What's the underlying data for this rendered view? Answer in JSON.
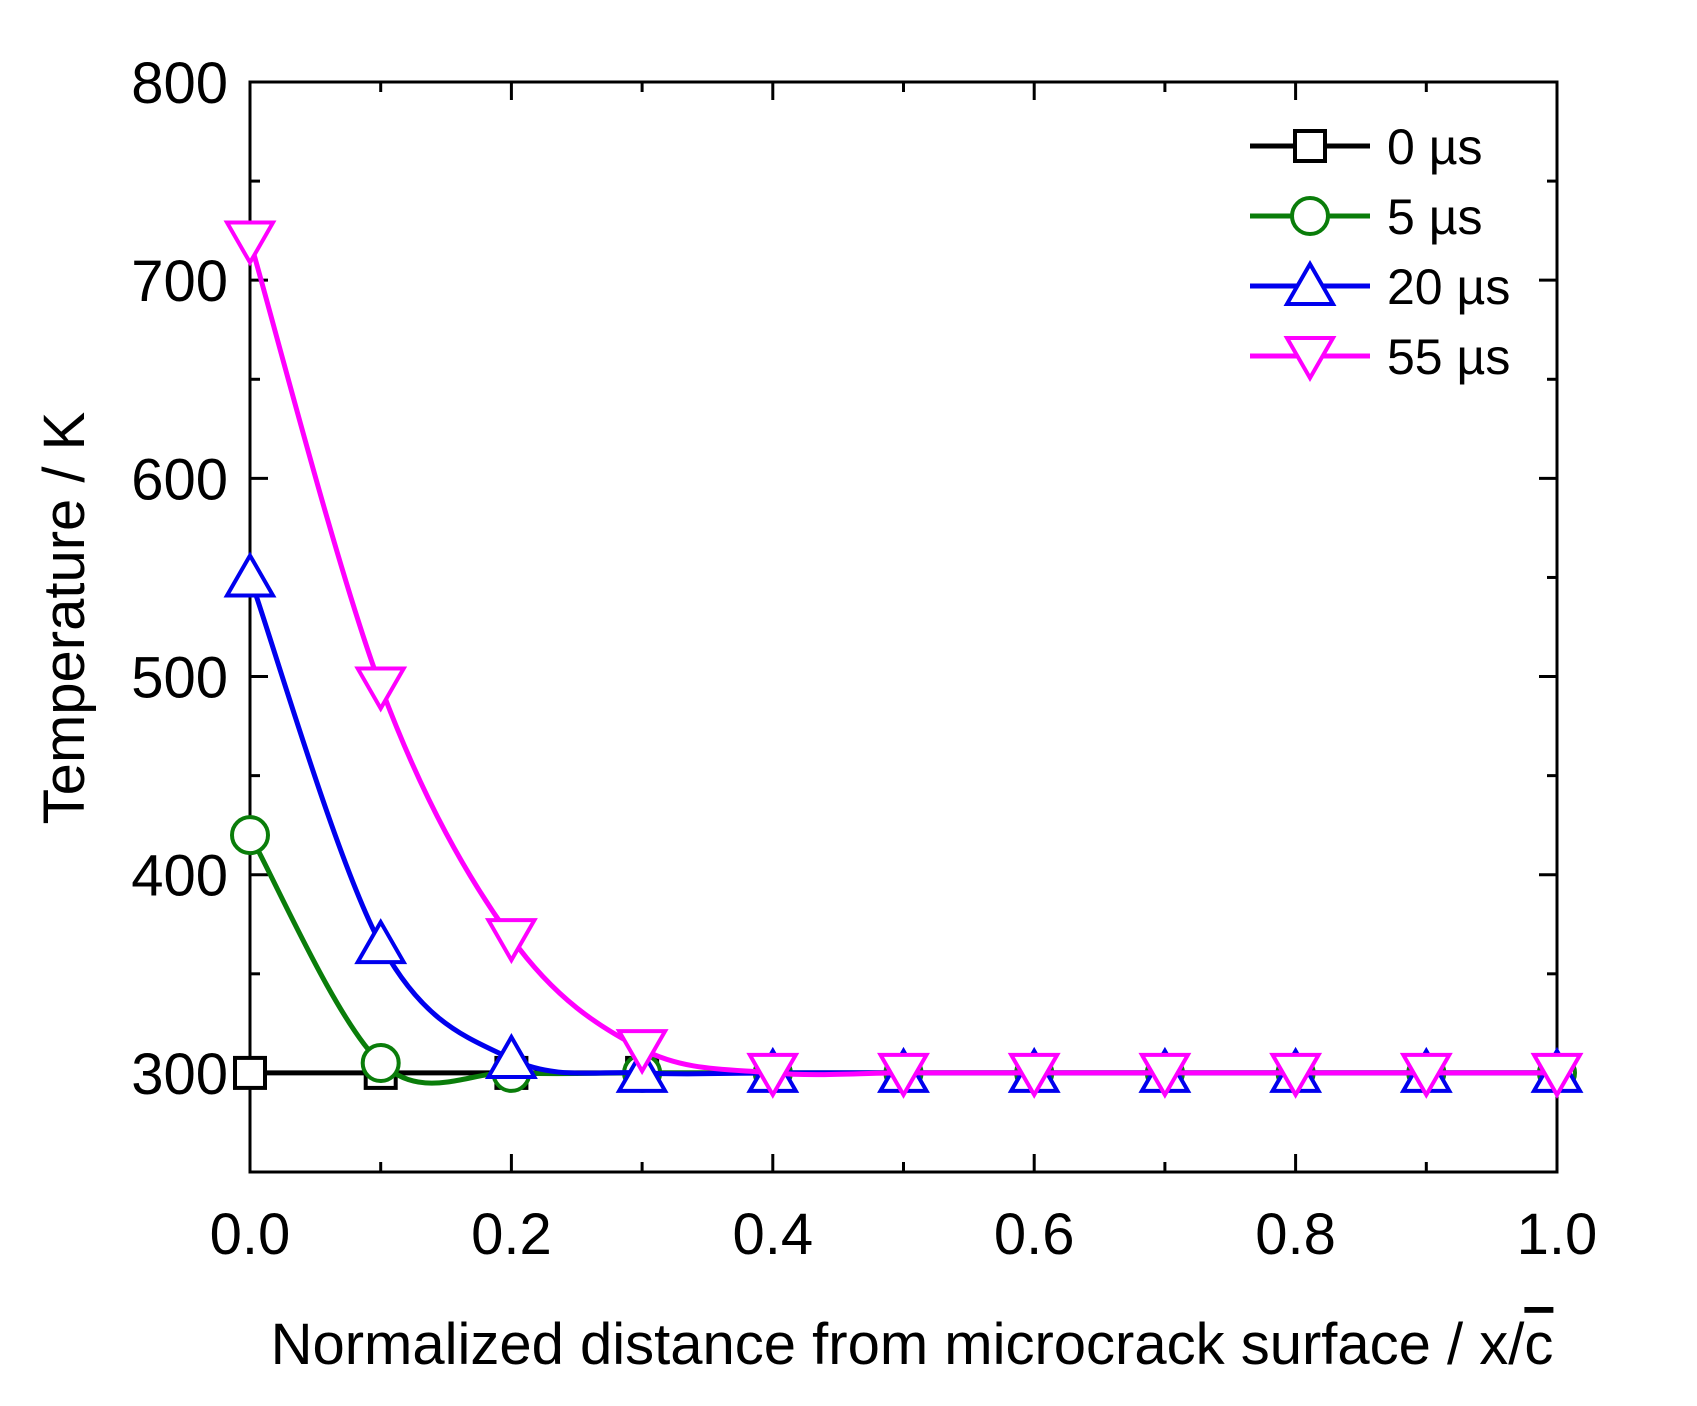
{
  "chart_data": {
    "type": "line",
    "title": "",
    "xlabel": "Normalized distance from microcrack surface / x/c",
    "xlabel_main": "Normalized distance from microcrack surface / x/",
    "xlabel_overbar_char": "c",
    "ylabel": "Temperature / K",
    "xlim": [
      0.0,
      1.0
    ],
    "ylim": [
      250,
      800
    ],
    "x_ticks": [
      0.0,
      0.2,
      0.4,
      0.6,
      0.8,
      1.0
    ],
    "x_tick_labels": [
      "0.0",
      "0.2",
      "0.4",
      "0.6",
      "0.8",
      "1.0"
    ],
    "x_minor_ticks": [
      0.1,
      0.3,
      0.5,
      0.7,
      0.9
    ],
    "y_ticks": [
      300,
      400,
      500,
      600,
      700,
      800
    ],
    "y_tick_labels": [
      "300",
      "400",
      "500",
      "600",
      "700",
      "800"
    ],
    "y_minor_ticks": [
      350,
      450,
      550,
      650,
      750
    ],
    "grid": false,
    "legend_position": "top-right",
    "x": [
      0.0,
      0.1,
      0.2,
      0.3,
      0.4,
      0.5,
      0.6,
      0.7,
      0.8,
      0.9,
      1.0
    ],
    "series": [
      {
        "name": "0 µs",
        "label": "0 µs",
        "color": "#000000",
        "marker": "square",
        "values": [
          300,
          300,
          300,
          300,
          300,
          300,
          300,
          300,
          300,
          300,
          300
        ]
      },
      {
        "name": "5 µs",
        "label": "5 µs",
        "color": "#0a7d0a",
        "marker": "circle",
        "values": [
          420,
          305,
          300,
          300,
          300,
          300,
          300,
          300,
          300,
          300,
          300
        ]
      },
      {
        "name": "20 µs",
        "label": "20 µs",
        "color": "#0000ee",
        "marker": "triangle-up",
        "values": [
          550,
          365,
          307,
          300,
          300,
          300,
          300,
          300,
          300,
          300,
          300
        ]
      },
      {
        "name": "55 µs",
        "label": "55 µs",
        "color": "#ff00ff",
        "marker": "triangle-down",
        "values": [
          720,
          495,
          368,
          312,
          300,
          300,
          300,
          300,
          300,
          300,
          300
        ]
      }
    ]
  }
}
